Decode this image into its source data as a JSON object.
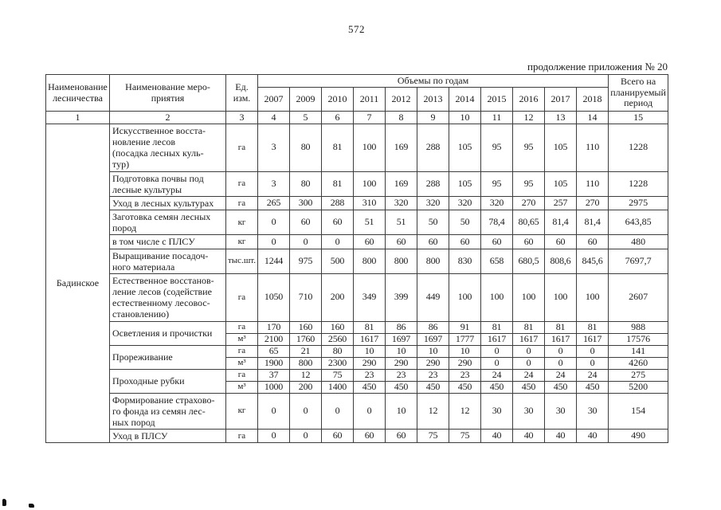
{
  "page": {
    "number": "572",
    "continuation_note": "продолжение приложения № 20"
  },
  "table": {
    "headers": {
      "col1": "Наименование\nлесничества",
      "col2": "Наименование меро-\nприятия",
      "col3": "Ед.\nизм.",
      "years_group": "Объемы по годам",
      "years": [
        "2007",
        "2009",
        "2010",
        "2011",
        "2012",
        "2013",
        "2014",
        "2015",
        "2016",
        "2017",
        "2018"
      ],
      "total": "Всего на\nпланируемый\nпериод",
      "numbering": [
        "1",
        "2",
        "3",
        "4",
        "5",
        "6",
        "7",
        "8",
        "9",
        "10",
        "11",
        "12",
        "13",
        "14",
        "15"
      ]
    },
    "forestry": "Бадинское",
    "rows": [
      {
        "activity": "Искусственное восста-\nновление лесов\n(посадка лесных куль-\nтур)",
        "rowspan": 1,
        "unit": "га",
        "values": [
          "3",
          "80",
          "81",
          "100",
          "169",
          "288",
          "105",
          "95",
          "95",
          "105",
          "110"
        ],
        "total": "1228"
      },
      {
        "activity": "Подготовка почвы под\nлесные культуры",
        "rowspan": 1,
        "unit": "га",
        "values": [
          "3",
          "80",
          "81",
          "100",
          "169",
          "288",
          "105",
          "95",
          "95",
          "105",
          "110"
        ],
        "total": "1228"
      },
      {
        "activity": "Уход в лесных культурах",
        "rowspan": 1,
        "unit": "га",
        "values": [
          "265",
          "300",
          "288",
          "310",
          "320",
          "320",
          "320",
          "320",
          "270",
          "257",
          "270"
        ],
        "total": "2975"
      },
      {
        "activity": "Заготовка семян лесных\nпород",
        "rowspan": 1,
        "unit": "кг",
        "values": [
          "0",
          "60",
          "60",
          "51",
          "51",
          "50",
          "50",
          "78,4",
          "80,65",
          "81,4",
          "81,4"
        ],
        "total": "643,85"
      },
      {
        "activity": "в том числе с ПЛСУ",
        "rowspan": 1,
        "unit": "кг",
        "values": [
          "0",
          "0",
          "0",
          "60",
          "60",
          "60",
          "60",
          "60",
          "60",
          "60",
          "60"
        ],
        "total": "480"
      },
      {
        "activity": "Выращивание посадоч-\nного материала",
        "rowspan": 1,
        "unit": "тыс.шт.",
        "values": [
          "1244",
          "975",
          "500",
          "800",
          "800",
          "800",
          "830",
          "658",
          "680,5",
          "808,6",
          "845,6"
        ],
        "total": "7697,7"
      },
      {
        "activity": "Естественное восстанов-\nление лесов (содействие\nестественному лесовос-\nстановлению)",
        "rowspan": 1,
        "unit": "га",
        "values": [
          "1050",
          "710",
          "200",
          "349",
          "399",
          "449",
          "100",
          "100",
          "100",
          "100",
          "100"
        ],
        "total": "2607"
      },
      {
        "activity": "Осветления и прочистки",
        "rowspan": 2,
        "unit": "га",
        "values": [
          "170",
          "160",
          "160",
          "81",
          "86",
          "86",
          "91",
          "81",
          "81",
          "81",
          "81"
        ],
        "total": "988"
      },
      {
        "activity": null,
        "rowspan": 0,
        "unit": "м³",
        "values": [
          "2100",
          "1760",
          "2560",
          "1617",
          "1697",
          "1697",
          "1777",
          "1617",
          "1617",
          "1617",
          "1617"
        ],
        "total": "17576"
      },
      {
        "activity": "Прореживание",
        "rowspan": 2,
        "unit": "га",
        "values": [
          "65",
          "21",
          "80",
          "10",
          "10",
          "10",
          "10",
          "0",
          "0",
          "0",
          "0"
        ],
        "total": "141"
      },
      {
        "activity": null,
        "rowspan": 0,
        "unit": "м³",
        "values": [
          "1900",
          "800",
          "2300",
          "290",
          "290",
          "290",
          "290",
          "0",
          "0",
          "0",
          "0"
        ],
        "total": "4260"
      },
      {
        "activity": "Проходные рубки",
        "rowspan": 2,
        "unit": "га",
        "values": [
          "37",
          "12",
          "75",
          "23",
          "23",
          "23",
          "23",
          "24",
          "24",
          "24",
          "24"
        ],
        "total": "275"
      },
      {
        "activity": null,
        "rowspan": 0,
        "unit": "м³",
        "values": [
          "1000",
          "200",
          "1400",
          "450",
          "450",
          "450",
          "450",
          "450",
          "450",
          "450",
          "450"
        ],
        "total": "5200"
      },
      {
        "activity": "Формирование страхово-\nго фонда из семян лес-\nных пород",
        "rowspan": 1,
        "unit": "кг",
        "values": [
          "0",
          "0",
          "0",
          "0",
          "10",
          "12",
          "12",
          "30",
          "30",
          "30",
          "30"
        ],
        "total": "154"
      },
      {
        "activity": "Уход в ПЛСУ",
        "rowspan": 1,
        "unit": "га",
        "values": [
          "0",
          "0",
          "60",
          "60",
          "60",
          "75",
          "75",
          "40",
          "40",
          "40",
          "40"
        ],
        "total": "490"
      }
    ]
  }
}
